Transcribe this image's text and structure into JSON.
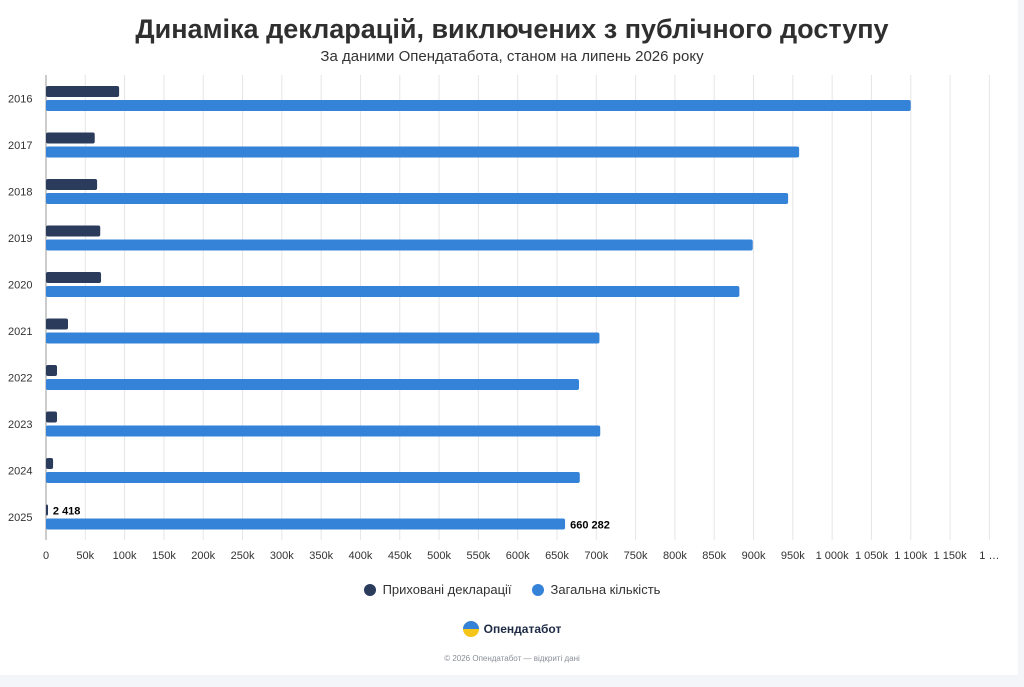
{
  "chart_data": {
    "type": "bar",
    "orientation": "horizontal",
    "title": "Динаміка декларацій, виключених з публічного доступу",
    "subtitle": "За даними Опендатабота, станом на липень 2026 року",
    "categories": [
      "2016",
      "2017",
      "2018",
      "2019",
      "2020",
      "2021",
      "2022",
      "2023",
      "2024",
      "2025"
    ],
    "series": [
      {
        "name": "Приховані декларації",
        "color": "#2a3b5c",
        "values": [
          93000,
          62000,
          65000,
          69000,
          70000,
          28000,
          14000,
          14000,
          9000,
          2418
        ]
      },
      {
        "name": "Загальна кількість",
        "color": "#3483d9",
        "values": [
          1100000,
          958000,
          944000,
          899000,
          882000,
          704000,
          678000,
          705000,
          679000,
          660282
        ]
      }
    ],
    "data_labels": [
      {
        "series": "Приховані декларації",
        "category": "2025",
        "text": "2 418"
      },
      {
        "series": "Загальна кількість",
        "category": "2025",
        "text": "660 282"
      }
    ],
    "x_ticks": [
      "0",
      "50k",
      "100k",
      "150k",
      "200k",
      "250k",
      "300k",
      "350k",
      "400k",
      "450k",
      "500k",
      "550k",
      "600k",
      "650k",
      "700k",
      "750k",
      "800k",
      "850k",
      "900k",
      "950k",
      "1 000k",
      "1 050k",
      "1 100k",
      "1 150k",
      "1 …"
    ],
    "x_tick_step": 50000,
    "xlim": [
      0,
      1200000
    ],
    "grid": true,
    "legend_position": "bottom-center"
  },
  "footer": {
    "brand": "Опендатабот",
    "brand_icon": "opendatabot-logo-icon",
    "copyright": "© 2026 Опендатабот — відкриті дані"
  }
}
